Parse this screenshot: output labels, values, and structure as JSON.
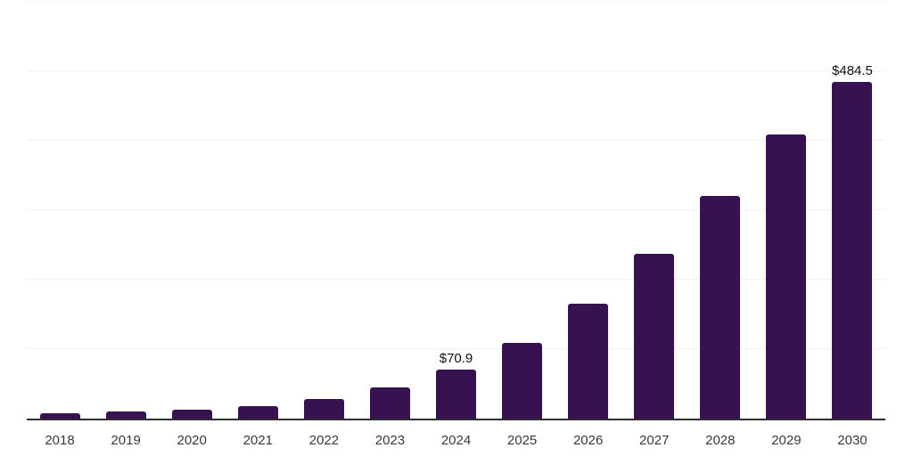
{
  "chart_data": {
    "type": "bar",
    "categories": [
      "2018",
      "2019",
      "2020",
      "2021",
      "2022",
      "2023",
      "2024",
      "2025",
      "2026",
      "2027",
      "2028",
      "2029",
      "2030"
    ],
    "values": [
      7.7,
      10.2,
      13.2,
      18.3,
      27.8,
      44.8,
      70.9,
      109.1,
      165.0,
      236.7,
      320.7,
      409.4,
      484.5
    ],
    "data_labels": [
      "",
      "",
      "",
      "",
      "",
      "",
      "$70.9",
      "",
      "",
      "",
      "",
      "",
      "$484.5"
    ],
    "value_prefix": "$",
    "ylim": [
      0,
      600
    ],
    "gridline_values": [
      100,
      200,
      300,
      400,
      500,
      600
    ],
    "grid": "horizontal",
    "legend": "none",
    "y_axis_labels_visible": false
  },
  "style": {
    "bar_color": "#361250",
    "axis_line_color": "#2e2e2e",
    "gridline_color": "#f1f1f1",
    "x_tick_color": "#383838",
    "data_label_color": "#111111",
    "background_color": "#ffffff"
  }
}
